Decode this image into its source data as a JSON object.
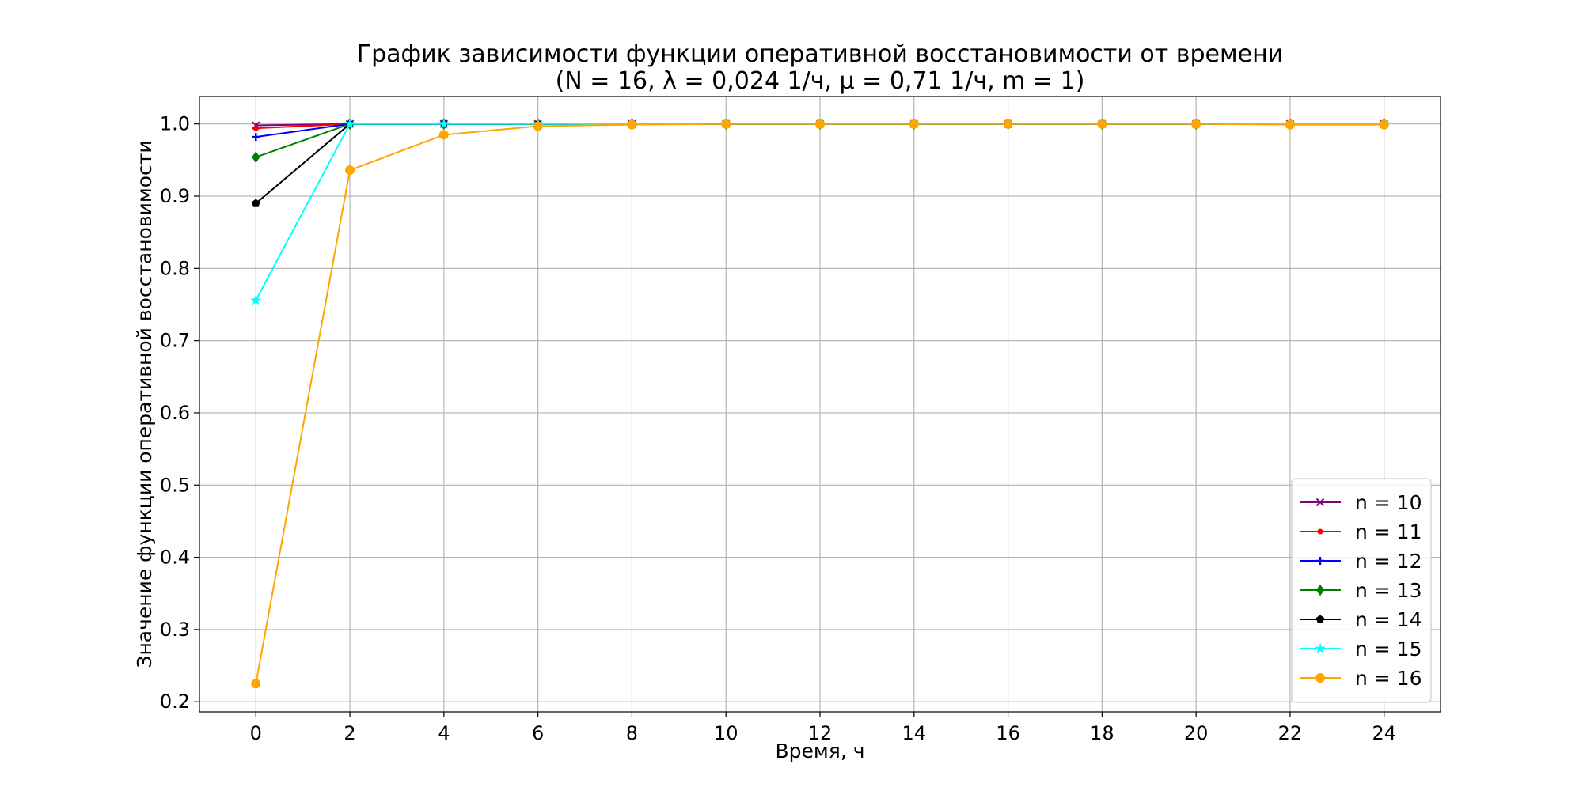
{
  "chart_data": {
    "type": "line",
    "title": "График зависимости функции оперативной восстановимости от времени",
    "subtitle": "(N = 16, λ = 0,024 1/ч, μ = 0,71 1/ч, m = 1)",
    "xlabel": "Время, ч",
    "ylabel": "Значение функции оперативной восстановимости",
    "xlim": [
      -1.2,
      25.2
    ],
    "ylim": [
      0.186,
      1.038
    ],
    "xticks": [
      0,
      2,
      4,
      6,
      8,
      10,
      12,
      14,
      16,
      18,
      20,
      22,
      24
    ],
    "yticks": [
      0.2,
      0.3,
      0.4,
      0.5,
      0.6,
      0.7,
      0.8,
      0.9,
      1.0
    ],
    "xtick_labels": [
      "0",
      "2",
      "4",
      "6",
      "8",
      "10",
      "12",
      "14",
      "16",
      "18",
      "20",
      "22",
      "24"
    ],
    "ytick_labels": [
      "0.2",
      "0.3",
      "0.4",
      "0.5",
      "0.6",
      "0.7",
      "0.8",
      "0.9",
      "1.0"
    ],
    "grid": true,
    "legend_position": "bottom-right",
    "x": [
      0,
      2,
      4,
      6,
      8,
      10,
      12,
      14,
      16,
      18,
      20,
      22,
      24
    ],
    "series": [
      {
        "name": "n = 10",
        "color": "#800080",
        "marker": "x",
        "values": [
          0.998,
          1.0,
          1.0,
          1.0,
          1.0,
          1.0,
          1.0,
          1.0,
          1.0,
          1.0,
          1.0,
          1.0,
          1.0
        ]
      },
      {
        "name": "n = 11",
        "color": "#ff0000",
        "marker": "point",
        "values": [
          0.994,
          1.0,
          1.0,
          1.0,
          1.0,
          1.0,
          1.0,
          1.0,
          1.0,
          1.0,
          1.0,
          1.0,
          1.0
        ]
      },
      {
        "name": "n = 12",
        "color": "#0000ff",
        "marker": "plus",
        "values": [
          0.982,
          1.0,
          1.0,
          1.0,
          1.0,
          1.0,
          1.0,
          1.0,
          1.0,
          1.0,
          1.0,
          1.0,
          1.0
        ]
      },
      {
        "name": "n = 13",
        "color": "#008000",
        "marker": "diamond",
        "values": [
          0.954,
          1.0,
          1.0,
          1.0,
          1.0,
          1.0,
          1.0,
          1.0,
          1.0,
          1.0,
          1.0,
          1.0,
          1.0
        ]
      },
      {
        "name": "n = 14",
        "color": "#000000",
        "marker": "pentagon",
        "values": [
          0.89,
          1.0,
          1.0,
          1.0,
          1.0,
          1.0,
          1.0,
          1.0,
          1.0,
          1.0,
          1.0,
          1.0,
          1.0
        ]
      },
      {
        "name": "n = 15",
        "color": "#00ffff",
        "marker": "star",
        "values": [
          0.756,
          1.0,
          1.0,
          1.0,
          1.0,
          1.0,
          1.0,
          1.0,
          1.0,
          1.0,
          1.0,
          1.0,
          1.0
        ]
      },
      {
        "name": "n = 16",
        "color": "#ffa500",
        "marker": "circle",
        "values": [
          0.225,
          0.936,
          0.985,
          0.997,
          0.999,
          1.0,
          1.0,
          1.0,
          1.0,
          1.0,
          1.0,
          0.999,
          0.999
        ]
      }
    ]
  }
}
